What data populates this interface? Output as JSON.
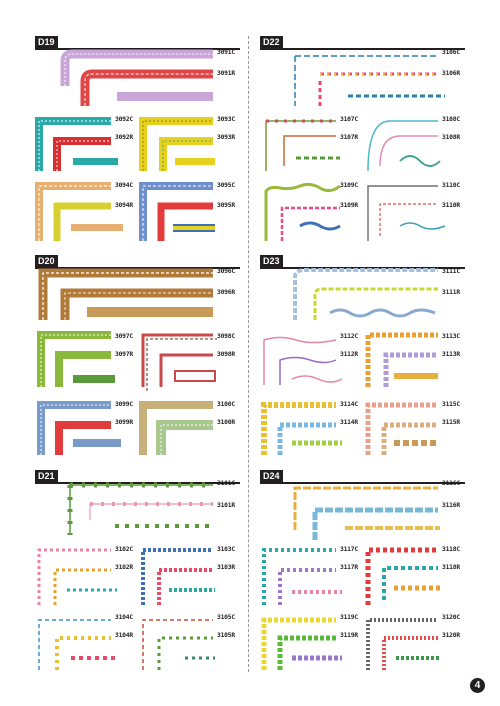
{
  "sections": [
    {
      "id": "d19",
      "tag": "D19",
      "codes": [
        "3091C",
        "3091R",
        "3092C",
        "3092R",
        "3093C",
        "3093R",
        "3094C",
        "3094R",
        "3095C",
        "3095R"
      ]
    },
    {
      "id": "d22",
      "tag": "D22",
      "codes": [
        "3106C",
        "3106R",
        "3107C",
        "3107R",
        "3108C",
        "3108R",
        "3109C",
        "3109R",
        "3110C",
        "3110R"
      ]
    },
    {
      "id": "d20",
      "tag": "D20",
      "codes": [
        "3096C",
        "3096R",
        "3097C",
        "3097R",
        "3098C",
        "3098R",
        "3099C",
        "3099R",
        "3100C",
        "3100R"
      ]
    },
    {
      "id": "d23",
      "tag": "D23",
      "codes": [
        "3111C",
        "3111R",
        "3112C",
        "3112R",
        "3113C",
        "3113R",
        "3114C",
        "3114R",
        "3115C",
        "3115R"
      ]
    },
    {
      "id": "d21",
      "tag": "D21",
      "codes": [
        "3101C",
        "3101R",
        "3102C",
        "3102R",
        "3103C",
        "3103R",
        "3104C",
        "3104R",
        "3105C",
        "3105R"
      ]
    },
    {
      "id": "d24",
      "tag": "D24",
      "codes": [
        "3116C",
        "3116R",
        "3117C",
        "3117R",
        "3118C",
        "3118R",
        "3119C",
        "3119R",
        "3120C",
        "3120R"
      ]
    }
  ],
  "page_number": "4",
  "colors": {
    "ink": "#231f20",
    "red": "#e23b3b",
    "teal": "#2aa9a8",
    "yellow": "#e6d21e",
    "orange": "#e8a04a",
    "green": "#5a9a3a",
    "blue": "#3f6fb5",
    "pink": "#e59bb5",
    "brown": "#a0703a"
  }
}
